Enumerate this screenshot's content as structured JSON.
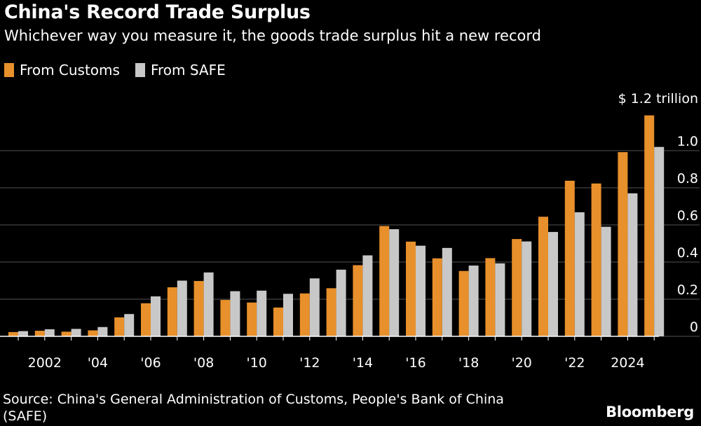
{
  "header": {
    "title": "China's Record Trade Surplus",
    "subtitle": "Whichever way you measure it, the goods trade surplus hit a new record"
  },
  "colors": {
    "customs": "#e8902b",
    "safe": "#c8c8c8",
    "grid": "#555555",
    "background": "#000000"
  },
  "chart_data": {
    "type": "bar",
    "title": "China's Record Trade Surplus",
    "subtitle": "Whichever way you measure it, the goods trade surplus hit a new record",
    "unit_label": "$ 1.2 trillion",
    "x": [
      2001,
      2002,
      2003,
      2004,
      2005,
      2006,
      2007,
      2008,
      2009,
      2010,
      2011,
      2012,
      2013,
      2014,
      2015,
      2016,
      2017,
      2018,
      2019,
      2020,
      2021,
      2022,
      2023,
      2024,
      2025
    ],
    "x_tick_labels": [
      {
        "year": 2002,
        "label": "2002"
      },
      {
        "year": 2004,
        "label": "'04"
      },
      {
        "year": 2006,
        "label": "'06"
      },
      {
        "year": 2008,
        "label": "'08"
      },
      {
        "year": 2010,
        "label": "'10"
      },
      {
        "year": 2012,
        "label": "'12"
      },
      {
        "year": 2014,
        "label": "'14"
      },
      {
        "year": 2016,
        "label": "'16"
      },
      {
        "year": 2018,
        "label": "'18"
      },
      {
        "year": 2020,
        "label": "'20"
      },
      {
        "year": 2022,
        "label": "'22"
      },
      {
        "year": 2024,
        "label": "2024"
      }
    ],
    "series": [
      {
        "name": "From Customs",
        "values": [
          0.023,
          0.03,
          0.025,
          0.032,
          0.102,
          0.178,
          0.264,
          0.298,
          0.196,
          0.182,
          0.155,
          0.231,
          0.259,
          0.383,
          0.594,
          0.51,
          0.42,
          0.352,
          0.421,
          0.524,
          0.644,
          0.838,
          0.823,
          0.992,
          1.19
        ]
      },
      {
        "name": "From SAFE",
        "values": [
          0.028,
          0.038,
          0.04,
          0.05,
          0.12,
          0.215,
          0.3,
          0.344,
          0.243,
          0.246,
          0.229,
          0.312,
          0.359,
          0.436,
          0.577,
          0.488,
          0.476,
          0.381,
          0.393,
          0.511,
          0.562,
          0.668,
          0.59,
          0.77,
          1.02
        ]
      }
    ],
    "y_ticks": [
      {
        "value": 0,
        "label": "0"
      },
      {
        "value": 0.2,
        "label": "0.2"
      },
      {
        "value": 0.4,
        "label": "0.4"
      },
      {
        "value": 0.6,
        "label": "0.6"
      },
      {
        "value": 0.8,
        "label": "0.8"
      },
      {
        "value": 1.0,
        "label": "1.0"
      }
    ],
    "ylim": [
      0,
      1.2
    ],
    "grid": true,
    "legend_position": "top-left"
  },
  "footer": {
    "source": "Source: China's General Administration of Customs, People's Bank of China (SAFE)",
    "brand": "Bloomberg"
  }
}
